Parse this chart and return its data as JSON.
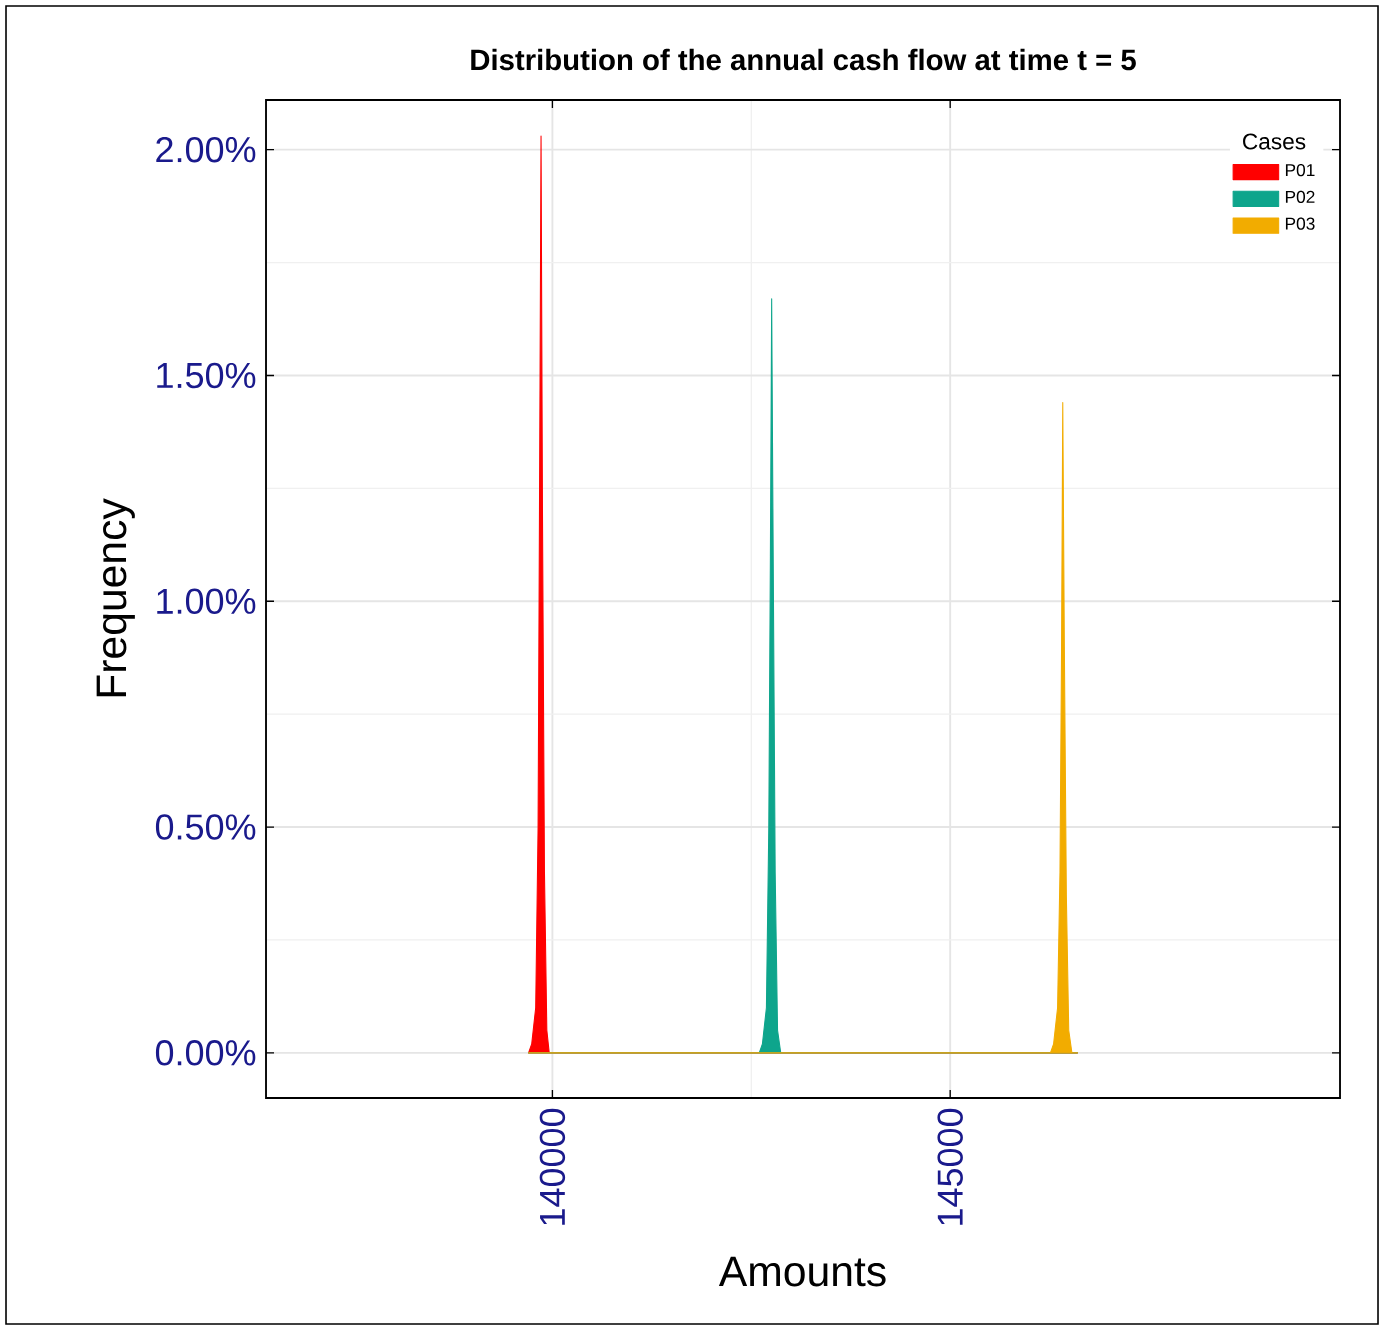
{
  "chart_data": {
    "type": "area",
    "title": "Distribution of the annual cash flow at time t = 5",
    "xlabel": "Amounts",
    "ylabel": "Frequency",
    "legend_title": "Cases",
    "xlim": [
      136400,
      149900
    ],
    "ylim": [
      -0.1,
      2.11
    ],
    "xticks": [
      140000,
      145000
    ],
    "yticks": [
      {
        "value": 0,
        "label": "0.00%"
      },
      {
        "value": 0.5,
        "label": "0.50%"
      },
      {
        "value": 1,
        "label": "1.00%"
      },
      {
        "value": 1.5,
        "label": "1.50%"
      },
      {
        "value": 2,
        "label": "2.00%"
      }
    ],
    "grid": true,
    "legend": "top right",
    "series": [
      {
        "name": "P01",
        "color": "#ff0000",
        "x": [
          139700,
          139740,
          139790,
          139820,
          139840,
          139857,
          139875,
          139900,
          139930,
          139960,
          146600
        ],
        "values": [
          0,
          0.02,
          0.1,
          0.5,
          1.3,
          2.03,
          1.2,
          0.4,
          0.05,
          0,
          0
        ]
      },
      {
        "name": "P02",
        "color": "#0ea58c",
        "x": [
          139700,
          142600,
          142640,
          142690,
          142720,
          142740,
          142756,
          142775,
          142800,
          142830,
          142870,
          146600
        ],
        "values": [
          0,
          0,
          0.02,
          0.1,
          0.5,
          1.1,
          1.67,
          1.1,
          0.4,
          0.05,
          0,
          0
        ]
      },
      {
        "name": "P03",
        "color": "#f2ac00",
        "x": [
          139700,
          146260,
          146300,
          146350,
          146380,
          146400,
          146415,
          146435,
          146460,
          146490,
          146530,
          146600
        ],
        "values": [
          0,
          0,
          0.02,
          0.1,
          0.4,
          0.9,
          1.44,
          0.9,
          0.35,
          0.05,
          0,
          0
        ]
      }
    ]
  }
}
